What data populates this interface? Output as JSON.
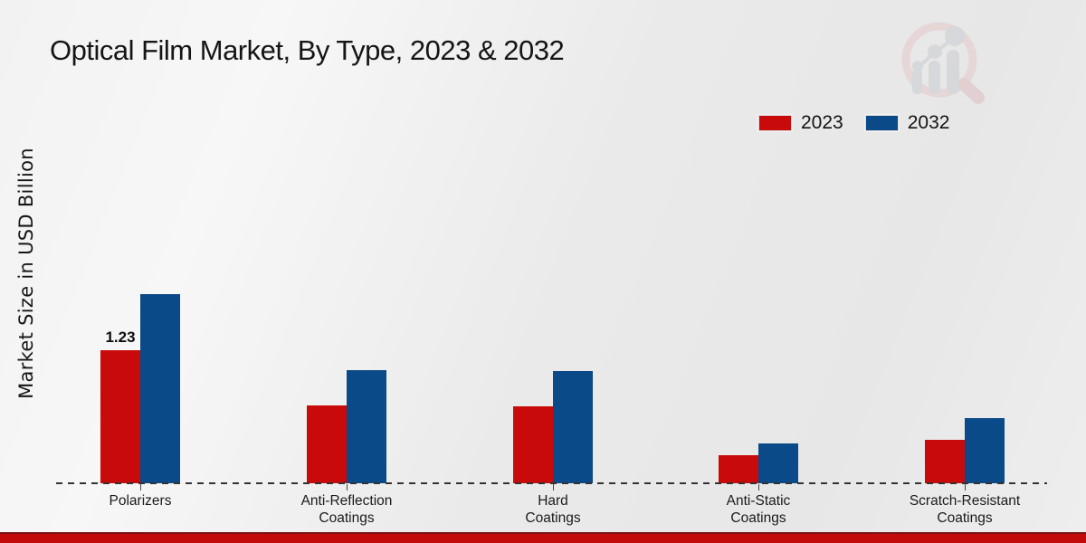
{
  "page": {
    "title": "Optical Film Market, By Type, 2023 & 2032"
  },
  "branding": {
    "logo_icon": "magnifier-bar-chart-icon",
    "footer_bar_color": "#c30a0a",
    "footer_bar_edge_color": "#7c1113"
  },
  "legend": {
    "position": "top-right",
    "items": [
      {
        "label": "2023",
        "color": "#c90a0a"
      },
      {
        "label": "2032",
        "color": "#0b4a88"
      }
    ]
  },
  "chart_data": {
    "type": "bar",
    "title": "Optical Film Market, By Type, 2023 & 2032",
    "ylabel": "Market Size in USD Billion",
    "xlabel": "",
    "categories": [
      "Polarizers",
      "Anti-Reflection Coatings",
      "Hard Coatings",
      "Anti-Static Coatings",
      "Scratch-Resistant Coatings"
    ],
    "category_labels": [
      "Polarizers",
      "Anti-Reflection\nCoatings",
      "Hard\nCoatings",
      "Anti-Static\nCoatings",
      "Scratch-Resistant\nCoatings"
    ],
    "series": [
      {
        "name": "2023",
        "color": "#c90a0a",
        "values": [
          1.23,
          0.72,
          0.71,
          0.26,
          0.4
        ]
      },
      {
        "name": "2032",
        "color": "#0b4a88",
        "values": [
          1.75,
          1.05,
          1.04,
          0.37,
          0.6
        ]
      }
    ],
    "data_labels": [
      {
        "category": "Polarizers",
        "series": "2023",
        "text": "1.23"
      }
    ],
    "ylim": [
      0,
      2
    ],
    "y_axis_ticks_visible": false,
    "grid": false,
    "baseline_style": "dashed",
    "legend_position": "top-right"
  }
}
